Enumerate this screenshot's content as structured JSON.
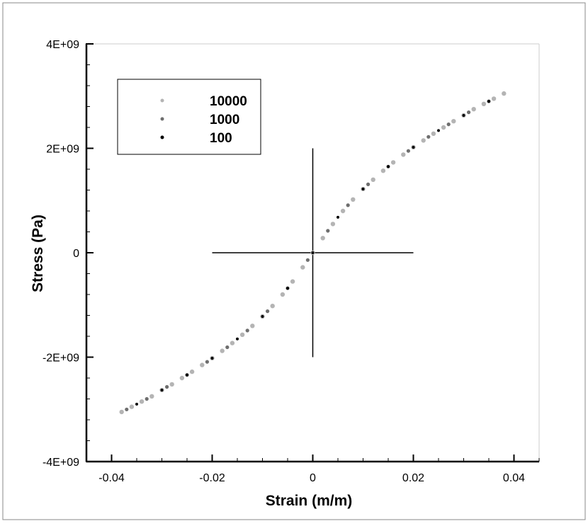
{
  "chart_data": {
    "type": "scatter",
    "title": "",
    "xlabel": "Strain (m/m)",
    "ylabel": "Stress (Pa)",
    "xlim": [
      -0.04,
      0.04
    ],
    "ylim": [
      -4000000000,
      4000000000
    ],
    "x_axis_range": [
      -0.045,
      0.045
    ],
    "x_ticks": [
      -0.04,
      -0.02,
      0,
      0.02,
      0.04
    ],
    "x_tick_labels": [
      "-0.04",
      "-0.02",
      "0",
      "0.02",
      "0.04"
    ],
    "y_ticks": [
      -4000000000,
      -2000000000,
      0,
      2000000000,
      4000000000
    ],
    "y_tick_labels": [
      "-4E+09",
      "-2E+09",
      "0",
      "2E+09",
      "4E+09"
    ],
    "grid": false,
    "legend_position": "top-left",
    "crosshair": {
      "x": 0,
      "y": 0,
      "x_extent": [
        -0.02,
        0.02
      ],
      "y_extent": [
        -2000000000,
        2000000000
      ]
    },
    "series": [
      {
        "name": "10000",
        "color": "#b4b4b4",
        "x": [
          -0.038,
          -0.036,
          -0.034,
          -0.032,
          -0.03,
          -0.028,
          -0.026,
          -0.024,
          -0.022,
          -0.02,
          -0.018,
          -0.016,
          -0.014,
          -0.012,
          -0.01,
          -0.008,
          -0.006,
          -0.004,
          -0.002,
          0.0,
          0.002,
          0.004,
          0.006,
          0.008,
          0.01,
          0.012,
          0.014,
          0.016,
          0.018,
          0.02,
          0.022,
          0.024,
          0.026,
          0.028,
          0.03,
          0.032,
          0.034,
          0.036,
          0.038
        ],
        "y": [
          -3050000000,
          -2950000000,
          -2850000000,
          -2750000000,
          -2630000000,
          -2520000000,
          -2400000000,
          -2280000000,
          -2150000000,
          -2020000000,
          -1880000000,
          -1730000000,
          -1570000000,
          -1400000000,
          -1220000000,
          -1020000000,
          -800000000,
          -550000000,
          -280000000,
          0,
          280000000,
          550000000,
          800000000,
          1020000000,
          1220000000,
          1400000000,
          1570000000,
          1730000000,
          1880000000,
          2020000000,
          2150000000,
          2280000000,
          2400000000,
          2520000000,
          2630000000,
          2750000000,
          2850000000,
          2950000000,
          3050000000
        ]
      },
      {
        "name": "1000",
        "color": "#6e6e6e",
        "x": [
          -0.037,
          -0.033,
          -0.029,
          -0.025,
          -0.021,
          -0.017,
          -0.013,
          -0.009,
          -0.005,
          -0.001,
          0.003,
          0.007,
          0.011,
          0.015,
          0.019,
          0.023,
          0.027,
          0.031,
          0.035
        ],
        "y": [
          -3000000000,
          -2800000000,
          -2570000000,
          -2340000000,
          -2090000000,
          -1810000000,
          -1490000000,
          -1120000000,
          -680000000,
          -140000000,
          420000000,
          910000000,
          1310000000,
          1650000000,
          1950000000,
          2220000000,
          2460000000,
          2690000000,
          2900000000
        ]
      },
      {
        "name": "100",
        "color": "#000000",
        "x": [
          -0.035,
          -0.03,
          -0.025,
          -0.02,
          -0.015,
          -0.01,
          -0.005,
          0.0,
          0.005,
          0.01,
          0.015,
          0.02,
          0.025,
          0.03,
          0.035
        ],
        "y": [
          -2900000000,
          -2630000000,
          -2340000000,
          -2020000000,
          -1650000000,
          -1220000000,
          -680000000,
          0,
          680000000,
          1220000000,
          1650000000,
          2020000000,
          2340000000,
          2630000000,
          2900000000
        ]
      }
    ]
  }
}
